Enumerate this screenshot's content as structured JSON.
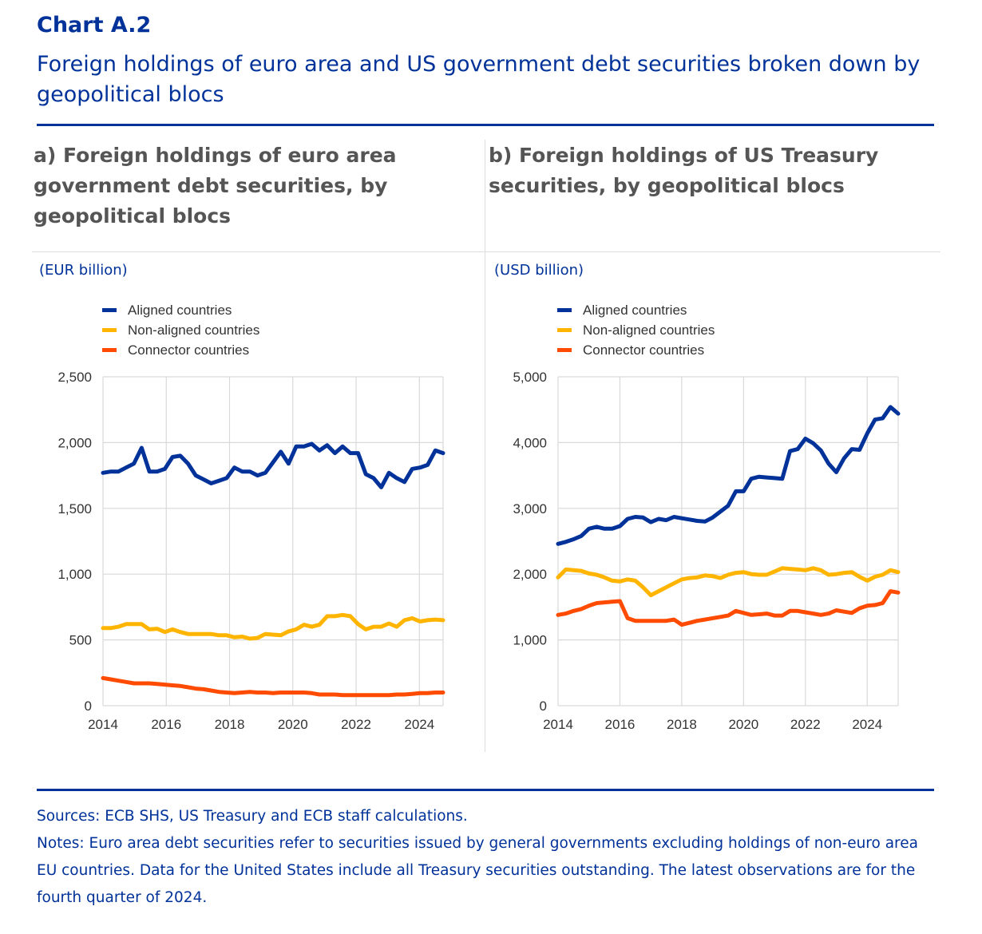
{
  "header": {
    "chart_label": "Chart A.2",
    "title": "Foreign holdings of euro area and US government debt securities broken down by geopolitical blocs"
  },
  "colors": {
    "aligned": "#003299",
    "non_aligned": "#FFB400",
    "connector": "#FF4B00",
    "grid": "#d9d9d9",
    "brand": "#003299"
  },
  "chart_data": [
    {
      "type": "line",
      "panel_title": "a) Foreign holdings of euro area government debt securities, by geopolitical blocs",
      "unit": "(EUR billion)",
      "ylim": [
        0,
        2500
      ],
      "yticks": [
        0,
        500,
        1000,
        1500,
        2000,
        2500
      ],
      "ytick_labels": [
        "0",
        "500",
        "1,000",
        "1,500",
        "2,000",
        "2,500"
      ],
      "xlim": [
        2014,
        2024.75
      ],
      "xticks": [
        2014,
        2016,
        2018,
        2020,
        2022,
        2024
      ],
      "x_start": 2014,
      "x_end": 2024.75,
      "grid": true,
      "legend": "top-left",
      "series": [
        {
          "name": "Aligned countries",
          "key": "aligned",
          "values": [
            1770,
            1780,
            1780,
            1810,
            1840,
            1960,
            1780,
            1780,
            1800,
            1890,
            1900,
            1840,
            1750,
            1720,
            1690,
            1710,
            1730,
            1810,
            1780,
            1780,
            1750,
            1770,
            1850,
            1930,
            1840,
            1970,
            1970,
            1990,
            1940,
            1980,
            1920,
            1970,
            1920,
            1920,
            1760,
            1730,
            1660,
            1770,
            1730,
            1700,
            1800,
            1810,
            1830,
            1940,
            1920
          ]
        },
        {
          "name": "Non-aligned countries",
          "key": "non_aligned",
          "values": [
            590,
            590,
            600,
            620,
            620,
            620,
            580,
            585,
            560,
            580,
            560,
            545,
            545,
            545,
            545,
            535,
            535,
            520,
            525,
            510,
            515,
            545,
            540,
            535,
            565,
            580,
            615,
            600,
            615,
            680,
            680,
            690,
            680,
            620,
            580,
            600,
            600,
            625,
            600,
            650,
            665,
            640,
            650,
            655,
            650
          ]
        },
        {
          "name": "Connector countries",
          "key": "connector",
          "values": [
            210,
            200,
            190,
            180,
            170,
            170,
            170,
            165,
            160,
            155,
            150,
            140,
            130,
            125,
            115,
            105,
            100,
            95,
            100,
            105,
            100,
            100,
            95,
            100,
            100,
            100,
            100,
            95,
            85,
            85,
            85,
            80,
            80,
            80,
            80,
            80,
            80,
            80,
            85,
            85,
            90,
            95,
            95,
            100,
            100
          ]
        }
      ]
    },
    {
      "type": "line",
      "panel_title": "b) Foreign holdings of US Treasury securities, by geopolitical blocs",
      "unit": "(USD billion)",
      "ylim": [
        0,
        5000
      ],
      "yticks": [
        0,
        1000,
        2000,
        3000,
        4000,
        5000
      ],
      "ytick_labels": [
        "0",
        "1,000",
        "2,000",
        "3,000",
        "4,000",
        "5,000"
      ],
      "xlim": [
        2014,
        2025
      ],
      "xticks": [
        2014,
        2016,
        2018,
        2020,
        2022,
        2024
      ],
      "x_start": 2014,
      "x_end": 2025,
      "grid": true,
      "legend": "top-left",
      "series": [
        {
          "name": "Aligned countries",
          "key": "aligned",
          "values": [
            2460,
            2490,
            2530,
            2580,
            2690,
            2720,
            2690,
            2690,
            2730,
            2840,
            2870,
            2860,
            2790,
            2840,
            2820,
            2870,
            2850,
            2830,
            2810,
            2800,
            2860,
            2950,
            3040,
            3260,
            3260,
            3450,
            3480,
            3470,
            3460,
            3450,
            3870,
            3900,
            4060,
            3990,
            3880,
            3680,
            3550,
            3760,
            3900,
            3890,
            4140,
            4350,
            4370,
            4540,
            4440
          ]
        },
        {
          "name": "Non-aligned countries",
          "key": "non_aligned",
          "values": [
            1950,
            2070,
            2060,
            2050,
            2010,
            1990,
            1950,
            1900,
            1890,
            1920,
            1900,
            1800,
            1680,
            1740,
            1800,
            1860,
            1920,
            1940,
            1950,
            1980,
            1970,
            1940,
            1990,
            2020,
            2030,
            2000,
            1990,
            1990,
            2040,
            2090,
            2080,
            2070,
            2060,
            2090,
            2060,
            1990,
            2000,
            2020,
            2030,
            1960,
            1900,
            1960,
            1990,
            2060,
            2030
          ]
        },
        {
          "name": "Connector countries",
          "key": "connector",
          "values": [
            1380,
            1400,
            1440,
            1470,
            1520,
            1560,
            1570,
            1580,
            1590,
            1330,
            1290,
            1290,
            1290,
            1290,
            1290,
            1310,
            1230,
            1260,
            1290,
            1310,
            1330,
            1350,
            1370,
            1440,
            1410,
            1380,
            1390,
            1400,
            1370,
            1370,
            1440,
            1440,
            1420,
            1400,
            1380,
            1400,
            1450,
            1430,
            1410,
            1480,
            1520,
            1530,
            1560,
            1740,
            1720
          ]
        }
      ]
    }
  ],
  "footer": {
    "sources": "Sources: ECB SHS, US Treasury and ECB staff calculations.",
    "notes": "Notes: Euro area debt securities refer to securities issued by general governments excluding holdings of non-euro area EU countries. Data for the United States include all Treasury securities outstanding. The latest observations are for the fourth quarter of 2024."
  }
}
